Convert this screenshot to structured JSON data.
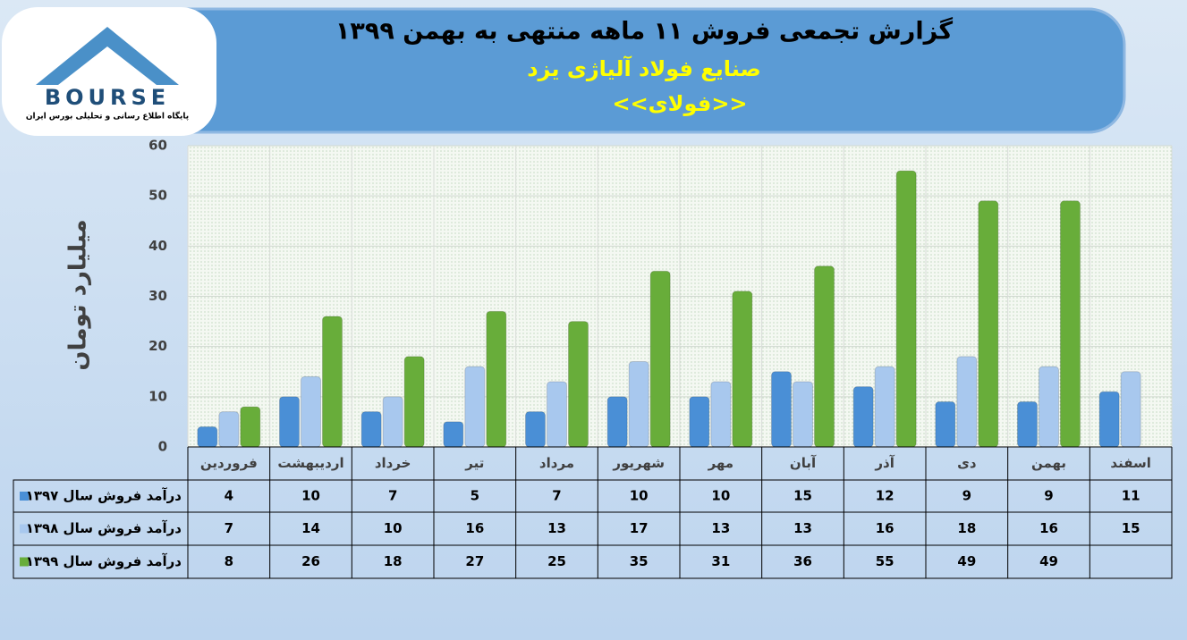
{
  "logo": {
    "name": "BOURSE",
    "tagline": "پایگاه اطلاع رسانی و تحلیلی بورس ایران"
  },
  "chart_data": {
    "type": "bar",
    "title": "گزارش تجمعی فروش ۱۱ ماهه منتهی به بهمن ۱۳۹۹",
    "subtitle": "صنایع فولاد آلیاژی یزد",
    "subtitle2": "<<فولای>>",
    "ylabel": "میلیارد تومان",
    "categories": [
      "فروردین",
      "اردیبهشت",
      "خرداد",
      "تیر",
      "مرداد",
      "شهریور",
      "مهر",
      "آبان",
      "آذر",
      "دی",
      "بهمن",
      "اسفند"
    ],
    "series": [
      {
        "name": "درآمد فروش سال ۱۳۹۷",
        "color": "#4a8fd6",
        "values": [
          4,
          10,
          7,
          5,
          7,
          10,
          10,
          15,
          12,
          9,
          9,
          11
        ]
      },
      {
        "name": "درآمد فروش سال ۱۳۹۸",
        "color": "#a8c8ee",
        "values": [
          7,
          14,
          10,
          16,
          13,
          17,
          13,
          13,
          16,
          18,
          16,
          15
        ]
      },
      {
        "name": "درآمد فروش سال ۱۳۹۹",
        "color": "#68ad3a",
        "values": [
          8,
          26,
          18,
          27,
          25,
          35,
          31,
          36,
          55,
          49,
          49,
          null
        ]
      }
    ],
    "ylim": [
      0,
      60
    ],
    "yticks": [
      0,
      10,
      20,
      30,
      40,
      50,
      60
    ],
    "grid": true
  }
}
